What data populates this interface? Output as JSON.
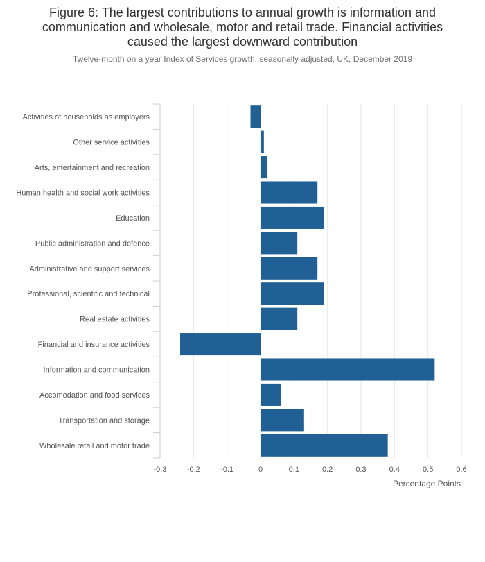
{
  "chart_data": {
    "type": "bar",
    "orientation": "horizontal",
    "title": "Figure 6: The largest contributions to annual growth is information and communication and wholesale, motor and retail trade. Financial activities caused the largest downward contribution",
    "title_lines": [
      "Figure 6: The largest contributions to annual growth is information and",
      "communication and wholesale, motor and retail trade. Financial activities",
      "caused the largest downward contribution"
    ],
    "subtitle": "Twelve-month on a year Index of Services growth, seasonally adjusted, UK, December 2019",
    "xlabel": "Percentage Points",
    "ylabel": "",
    "xlim": [
      -0.3,
      0.6
    ],
    "xticks": [
      -0.3,
      -0.2,
      -0.1,
      0,
      0.1,
      0.2,
      0.3,
      0.4,
      0.5,
      0.6
    ],
    "xtick_labels": [
      "-0.3",
      "-0.2",
      "-0.1",
      "0",
      "0.1",
      "0.2",
      "0.3",
      "0.4",
      "0.5",
      "0.6"
    ],
    "grid": true,
    "bar_color": "#206095",
    "categories": [
      "Activities of households as employers",
      "Other service activities",
      "Arts, entertainment and recreation",
      "Human health and social work activities",
      "Education",
      "Public administration and defence",
      "Administrative and support services",
      "Professional, scientific and technical",
      "Real estate activities",
      "Financial and insurance activities",
      "Information and communication",
      "Accomodation and food services",
      "Transportation and storage",
      "Wholesale retail and motor trade"
    ],
    "values": [
      -0.03,
      0.01,
      0.02,
      0.17,
      0.19,
      0.11,
      0.17,
      0.19,
      0.11,
      -0.24,
      0.52,
      0.06,
      0.13,
      0.38
    ]
  }
}
